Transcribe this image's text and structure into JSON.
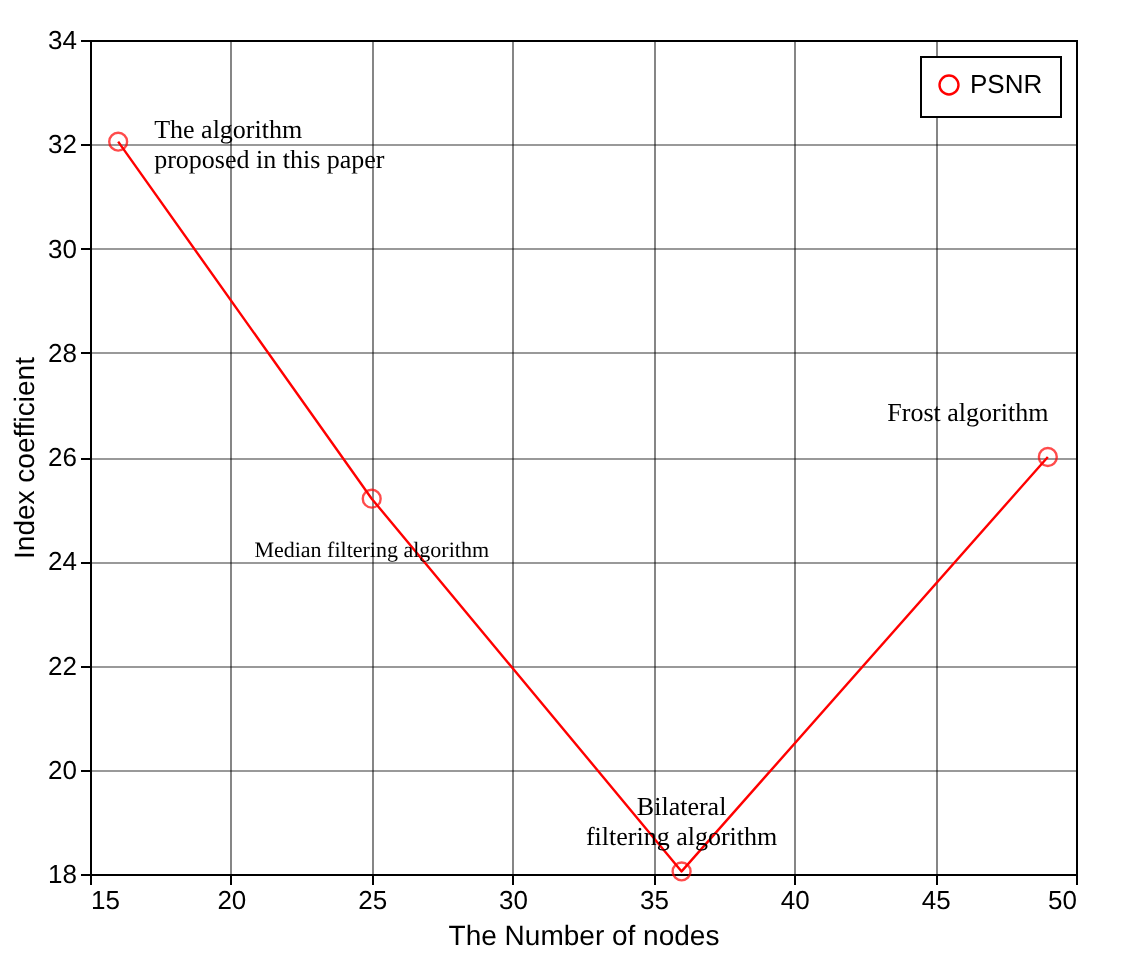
{
  "chart_data": {
    "type": "line",
    "xlabel": "The Number of nodes",
    "ylabel": "Index coefficient",
    "x": [
      16,
      25,
      36,
      49
    ],
    "series": [
      {
        "name": "PSNR",
        "color": "#ff0000",
        "values": [
          32.05,
          25.2,
          18.05,
          26.0
        ]
      }
    ],
    "xlim": [
      15,
      50
    ],
    "xticks": [
      15,
      20,
      25,
      30,
      35,
      40,
      45,
      50
    ],
    "ylim": [
      18,
      34
    ],
    "yticks": [
      18,
      20,
      22,
      24,
      26,
      28,
      30,
      32,
      34
    ],
    "grid": true,
    "legend": "top right",
    "marker": "circle",
    "line_style": "solid",
    "annotations": [
      {
        "text": "The algorithm proposed in this paper",
        "x": 16,
        "y": 32.05
      },
      {
        "text": "Median filtering algorithm",
        "x": 25,
        "y": 25.2
      },
      {
        "text": "Bilateral filtering algorithm",
        "x": 36,
        "y": 18.05
      },
      {
        "text": "Frost algorithm",
        "x": 49,
        "y": 26.0
      }
    ]
  }
}
